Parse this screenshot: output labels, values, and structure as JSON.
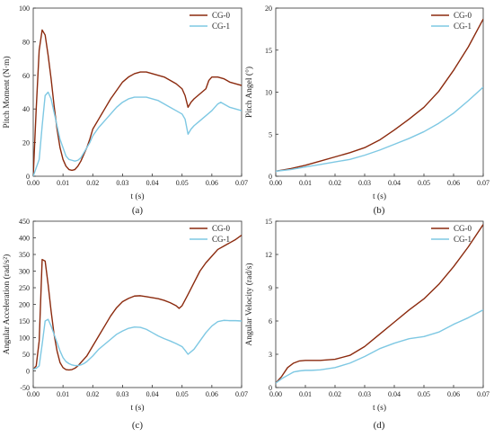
{
  "colors": {
    "CG-0": "#8b2a0e",
    "CG-1": "#7ec8e3",
    "axis": "#333333"
  },
  "chart_data": [
    {
      "id": "a",
      "type": "line",
      "panel_label": "(a)",
      "xlabel": "t (s)",
      "ylabel": "Pitch Moment (N·m)",
      "xlim": [
        0,
        0.07
      ],
      "ylim": [
        0,
        100
      ],
      "xticks": [
        "0.00",
        "0.01",
        "0.02",
        "0.03",
        "0.04",
        "0.05",
        "0.06",
        "0.07"
      ],
      "yticks": [
        "0",
        "20",
        "40",
        "60",
        "80",
        "100"
      ],
      "legend_position": "top-right",
      "series": [
        {
          "name": "CG-0",
          "x": [
            0,
            0.001,
            0.002,
            0.003,
            0.004,
            0.005,
            0.006,
            0.007,
            0.008,
            0.009,
            0.01,
            0.011,
            0.012,
            0.013,
            0.014,
            0.015,
            0.016,
            0.017,
            0.018,
            0.019,
            0.02,
            0.022,
            0.024,
            0.026,
            0.028,
            0.03,
            0.032,
            0.034,
            0.036,
            0.038,
            0.04,
            0.042,
            0.044,
            0.046,
            0.048,
            0.05,
            0.051,
            0.052,
            0.053,
            0.054,
            0.056,
            0.058,
            0.059,
            0.06,
            0.062,
            0.064,
            0.066,
            0.068,
            0.07
          ],
          "y": [
            0,
            40,
            75,
            87,
            84,
            72,
            58,
            42,
            28,
            17,
            10,
            6,
            4,
            3.5,
            4,
            6,
            9,
            13,
            17,
            22,
            28,
            34,
            40,
            46,
            51,
            56,
            59,
            61,
            62,
            62,
            61,
            60,
            59,
            57,
            55,
            52,
            48,
            41,
            44,
            46,
            49,
            52,
            57,
            59,
            59,
            58,
            56,
            55,
            54
          ]
        },
        {
          "name": "CG-1",
          "x": [
            0,
            0.001,
            0.002,
            0.003,
            0.004,
            0.005,
            0.006,
            0.007,
            0.008,
            0.009,
            0.01,
            0.011,
            0.012,
            0.013,
            0.014,
            0.015,
            0.016,
            0.017,
            0.018,
            0.019,
            0.02,
            0.022,
            0.024,
            0.026,
            0.028,
            0.03,
            0.032,
            0.034,
            0.036,
            0.038,
            0.04,
            0.042,
            0.044,
            0.046,
            0.048,
            0.05,
            0.051,
            0.052,
            0.053,
            0.054,
            0.056,
            0.058,
            0.06,
            0.062,
            0.063,
            0.064,
            0.066,
            0.068,
            0.07
          ],
          "y": [
            0,
            5,
            10,
            30,
            48,
            50,
            46,
            38,
            30,
            22,
            17,
            12,
            10,
            9.5,
            9,
            9.5,
            11,
            14,
            17,
            20,
            24,
            29,
            33,
            37,
            41,
            44,
            46,
            47,
            47,
            47,
            46,
            45,
            43,
            41,
            39,
            37,
            34,
            25,
            28,
            30,
            33,
            36,
            39,
            43,
            44,
            43,
            41,
            40,
            39
          ]
        }
      ]
    },
    {
      "id": "b",
      "type": "line",
      "panel_label": "(b)",
      "xlabel": "t (s)",
      "ylabel": "Pitch Angel (°)",
      "xlim": [
        0,
        0.07
      ],
      "ylim": [
        0,
        20
      ],
      "xticks": [
        "0.00",
        "0.01",
        "0.02",
        "0.03",
        "0.04",
        "0.05",
        "0.06",
        "0.07"
      ],
      "yticks": [
        "0",
        "5",
        "10",
        "15",
        "20"
      ],
      "legend_position": "top-right",
      "series": [
        {
          "name": "CG-0",
          "x": [
            0,
            0.005,
            0.01,
            0.015,
            0.02,
            0.025,
            0.03,
            0.035,
            0.04,
            0.045,
            0.05,
            0.055,
            0.06,
            0.065,
            0.07
          ],
          "y": [
            0.6,
            0.9,
            1.3,
            1.8,
            2.3,
            2.8,
            3.4,
            4.3,
            5.5,
            6.8,
            8.2,
            10.1,
            12.6,
            15.4,
            18.7
          ]
        },
        {
          "name": "CG-1",
          "x": [
            0,
            0.005,
            0.01,
            0.015,
            0.02,
            0.025,
            0.03,
            0.035,
            0.04,
            0.045,
            0.05,
            0.055,
            0.06,
            0.065,
            0.07
          ],
          "y": [
            0.6,
            0.8,
            1.1,
            1.4,
            1.7,
            2.0,
            2.5,
            3.1,
            3.8,
            4.5,
            5.3,
            6.3,
            7.5,
            9.0,
            10.6
          ]
        }
      ]
    },
    {
      "id": "c",
      "type": "line",
      "panel_label": "(c)",
      "xlabel": "t (s)",
      "ylabel": "Angular Acceleration (rad/s²)",
      "xlim": [
        0,
        0.07
      ],
      "ylim": [
        -50,
        450
      ],
      "xticks": [
        "0.00",
        "0.01",
        "0.02",
        "0.03",
        "0.04",
        "0.05",
        "0.06",
        "0.07"
      ],
      "yticks": [
        "-50",
        "0",
        "50",
        "100",
        "150",
        "200",
        "250",
        "300",
        "350",
        "400",
        "450"
      ],
      "legend_position": "top-right",
      "series": [
        {
          "name": "CG-0",
          "x": [
            0,
            0.001,
            0.002,
            0.003,
            0.004,
            0.005,
            0.006,
            0.007,
            0.008,
            0.009,
            0.01,
            0.011,
            0.012,
            0.013,
            0.014,
            0.015,
            0.016,
            0.017,
            0.018,
            0.02,
            0.022,
            0.024,
            0.026,
            0.028,
            0.03,
            0.032,
            0.034,
            0.036,
            0.038,
            0.04,
            0.042,
            0.044,
            0.046,
            0.048,
            0.049,
            0.05,
            0.052,
            0.054,
            0.056,
            0.058,
            0.06,
            0.062,
            0.064,
            0.066,
            0.068,
            0.07
          ],
          "y": [
            5,
            15,
            90,
            335,
            330,
            260,
            180,
            110,
            60,
            25,
            10,
            4,
            3,
            4,
            8,
            15,
            25,
            35,
            45,
            75,
            105,
            135,
            165,
            190,
            208,
            218,
            225,
            226,
            223,
            220,
            217,
            212,
            205,
            196,
            188,
            196,
            230,
            265,
            300,
            325,
            345,
            365,
            375,
            385,
            395,
            408
          ]
        },
        {
          "name": "CG-1",
          "x": [
            0,
            0.001,
            0.002,
            0.003,
            0.004,
            0.005,
            0.006,
            0.007,
            0.008,
            0.009,
            0.01,
            0.011,
            0.012,
            0.013,
            0.014,
            0.015,
            0.016,
            0.017,
            0.018,
            0.02,
            0.022,
            0.024,
            0.026,
            0.028,
            0.03,
            0.032,
            0.034,
            0.036,
            0.038,
            0.04,
            0.042,
            0.044,
            0.046,
            0.048,
            0.05,
            0.051,
            0.052,
            0.054,
            0.056,
            0.058,
            0.06,
            0.062,
            0.064,
            0.066,
            0.068,
            0.07
          ],
          "y": [
            5,
            8,
            15,
            80,
            150,
            155,
            135,
            110,
            85,
            60,
            40,
            28,
            22,
            18,
            16,
            16,
            18,
            22,
            28,
            45,
            65,
            80,
            95,
            110,
            120,
            128,
            132,
            131,
            125,
            115,
            105,
            97,
            90,
            82,
            73,
            62,
            50,
            65,
            90,
            115,
            135,
            148,
            152,
            151,
            151,
            150
          ]
        }
      ]
    },
    {
      "id": "d",
      "type": "line",
      "panel_label": "(d)",
      "xlabel": "t (s)",
      "ylabel": "Angular Velocity (rad/s)",
      "xlim": [
        0,
        0.07
      ],
      "ylim": [
        0,
        15
      ],
      "xticks": [
        "0.00",
        "0.01",
        "0.02",
        "0.03",
        "0.04",
        "0.05",
        "0.06",
        "0.07"
      ],
      "yticks": [
        "0",
        "3",
        "6",
        "9",
        "12",
        "15"
      ],
      "legend_position": "top-right",
      "series": [
        {
          "name": "CG-0",
          "x": [
            0,
            0.002,
            0.004,
            0.006,
            0.008,
            0.01,
            0.012,
            0.015,
            0.02,
            0.025,
            0.03,
            0.035,
            0.04,
            0.045,
            0.05,
            0.055,
            0.06,
            0.065,
            0.07
          ],
          "y": [
            0.4,
            1.0,
            1.8,
            2.2,
            2.4,
            2.45,
            2.45,
            2.45,
            2.55,
            2.9,
            3.7,
            4.8,
            5.9,
            7.0,
            8.0,
            9.3,
            10.9,
            12.7,
            14.7
          ]
        },
        {
          "name": "CG-1",
          "x": [
            0,
            0.002,
            0.004,
            0.006,
            0.008,
            0.01,
            0.012,
            0.015,
            0.02,
            0.025,
            0.03,
            0.035,
            0.04,
            0.045,
            0.05,
            0.055,
            0.06,
            0.065,
            0.07
          ],
          "y": [
            0.4,
            0.8,
            1.1,
            1.4,
            1.5,
            1.55,
            1.55,
            1.6,
            1.8,
            2.2,
            2.8,
            3.5,
            4.0,
            4.4,
            4.6,
            5.0,
            5.7,
            6.3,
            7.0
          ]
        }
      ]
    }
  ]
}
